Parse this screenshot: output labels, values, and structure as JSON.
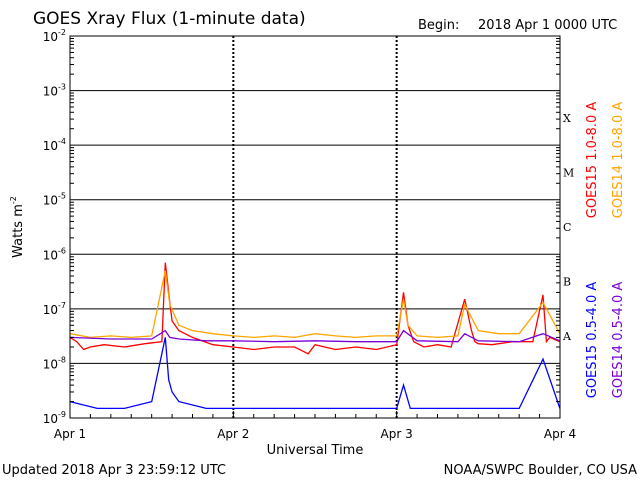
{
  "header": {
    "title": "GOES Xray Flux (1-minute data)",
    "begin_label": "Begin:",
    "begin_value": "2018 Apr 1 0000 UTC"
  },
  "footer": {
    "updated": "Updated 2018 Apr  3 23:59:12 UTC",
    "credit": "NOAA/SWPC Boulder, CO USA"
  },
  "colors": {
    "goes15_long": "#ff0000",
    "goes14_long": "#ffa500",
    "goes15_short": "#0000ff",
    "goes14_short": "#7b00d6",
    "grid": "#000000",
    "background": "#ffffff"
  },
  "chart_data": {
    "type": "line",
    "yscale": "log",
    "xlabel": "Universal Time",
    "ylabel": "Watts m",
    "ylabel_superscript": "-2",
    "ylim": [
      1e-09,
      0.01
    ],
    "y_tick_exponents": [
      -9,
      -8,
      -7,
      -6,
      -5,
      -4,
      -3,
      -2
    ],
    "xlim": [
      "2018-04-01T00:00",
      "2018-04-04T00:00"
    ],
    "x_ticks": [
      "Apr 1",
      "Apr 2",
      "Apr 3",
      "Apr 4"
    ],
    "flare_classes": [
      {
        "label": "A",
        "lower": 1e-08
      },
      {
        "label": "B",
        "lower": 1e-07
      },
      {
        "label": "C",
        "lower": 1e-06
      },
      {
        "label": "M",
        "lower": 1e-05
      },
      {
        "label": "X",
        "lower": 0.0001
      }
    ],
    "series": [
      {
        "name": "GOES15 1.0-8.0 A",
        "color": "#ff0000",
        "x": [
          "2018-04-01T00:00",
          "2018-04-01T01:00",
          "2018-04-01T02:00",
          "2018-04-01T03:00",
          "2018-04-01T05:00",
          "2018-04-01T08:00",
          "2018-04-01T11:00",
          "2018-04-01T13:30",
          "2018-04-01T14:00",
          "2018-04-01T14:40",
          "2018-04-01T15:00",
          "2018-04-01T16:00",
          "2018-04-01T18:00",
          "2018-04-01T21:00",
          "2018-04-02T00:00",
          "2018-04-02T03:00",
          "2018-04-02T06:00",
          "2018-04-02T09:00",
          "2018-04-02T11:00",
          "2018-04-02T12:00",
          "2018-04-02T15:00",
          "2018-04-02T18:00",
          "2018-04-02T21:00",
          "2018-04-03T00:00",
          "2018-04-03T01:00",
          "2018-04-03T01:40",
          "2018-04-03T02:30",
          "2018-04-03T04:00",
          "2018-04-03T06:00",
          "2018-04-03T08:00",
          "2018-04-03T10:00",
          "2018-04-03T11:00",
          "2018-04-03T11:30",
          "2018-04-03T12:00",
          "2018-04-03T14:00",
          "2018-04-03T17:00",
          "2018-04-03T20:00",
          "2018-04-03T21:30",
          "2018-04-03T22:00",
          "2018-04-03T22:30",
          "2018-04-03T23:59"
        ],
        "y": [
          3e-08,
          2.5e-08,
          1.8e-08,
          2e-08,
          2.2e-08,
          2e-08,
          2.3e-08,
          2.5e-08,
          7e-07,
          1.3e-07,
          6e-08,
          4e-08,
          3e-08,
          2.2e-08,
          2e-08,
          1.8e-08,
          2e-08,
          2e-08,
          1.5e-08,
          2.2e-08,
          1.8e-08,
          2e-08,
          1.8e-08,
          2.2e-08,
          2e-07,
          5e-08,
          2.5e-08,
          2e-08,
          2.2e-08,
          2e-08,
          1.5e-07,
          4e-08,
          2.5e-08,
          2.3e-08,
          2.2e-08,
          2.5e-08,
          2.5e-08,
          1.8e-07,
          2.5e-08,
          3e-08,
          2.5e-08
        ]
      },
      {
        "name": "GOES14 1.0-8.0 A",
        "color": "#ffa500",
        "x": [
          "2018-04-01T00:00",
          "2018-04-01T03:00",
          "2018-04-01T06:00",
          "2018-04-01T09:00",
          "2018-04-01T12:00",
          "2018-04-01T14:00",
          "2018-04-01T14:40",
          "2018-04-01T16:00",
          "2018-04-01T18:00",
          "2018-04-01T21:00",
          "2018-04-02T00:00",
          "2018-04-02T03:00",
          "2018-04-02T06:00",
          "2018-04-02T09:00",
          "2018-04-02T12:00",
          "2018-04-02T15:00",
          "2018-04-02T18:00",
          "2018-04-02T21:00",
          "2018-04-03T00:00",
          "2018-04-03T01:00",
          "2018-04-03T01:40",
          "2018-04-03T03:00",
          "2018-04-03T06:00",
          "2018-04-03T09:00",
          "2018-04-03T10:00",
          "2018-04-03T12:00",
          "2018-04-03T15:00",
          "2018-04-03T18:00",
          "2018-04-03T21:30",
          "2018-04-03T23:59"
        ],
        "y": [
          3.5e-08,
          3e-08,
          3.2e-08,
          3e-08,
          3.2e-08,
          5e-07,
          1.2e-07,
          5e-08,
          4e-08,
          3.5e-08,
          3.2e-08,
          3e-08,
          3.2e-08,
          3e-08,
          3.5e-08,
          3.2e-08,
          3e-08,
          3.2e-08,
          3.2e-08,
          1.5e-07,
          5e-08,
          3.2e-08,
          3e-08,
          3.2e-08,
          1.2e-07,
          4e-08,
          3.5e-08,
          3.5e-08,
          1.3e-07,
          3.5e-08
        ]
      },
      {
        "name": "GOES15 0.5-4.0 A",
        "color": "#0000ff",
        "x": [
          "2018-04-01T00:00",
          "2018-04-01T04:00",
          "2018-04-01T08:00",
          "2018-04-01T12:00",
          "2018-04-01T14:00",
          "2018-04-01T14:30",
          "2018-04-01T15:00",
          "2018-04-01T16:00",
          "2018-04-01T20:00",
          "2018-04-02T00:00",
          "2018-04-02T06:00",
          "2018-04-02T12:00",
          "2018-04-02T18:00",
          "2018-04-03T00:00",
          "2018-04-03T01:00",
          "2018-04-03T02:00",
          "2018-04-03T06:00",
          "2018-04-03T12:00",
          "2018-04-03T18:00",
          "2018-04-03T21:30",
          "2018-04-03T23:59"
        ],
        "y": [
          2e-09,
          1.5e-09,
          1.5e-09,
          2e-09,
          3e-08,
          5e-09,
          3e-09,
          2e-09,
          1.5e-09,
          1.5e-09,
          1.5e-09,
          1.5e-09,
          1.5e-09,
          1.5e-09,
          4e-09,
          1.5e-09,
          1.5e-09,
          1.5e-09,
          1.5e-09,
          1.2e-08,
          1.5e-09
        ]
      },
      {
        "name": "GOES14 0.5-4.0 A",
        "color": "#7b00d6",
        "x": [
          "2018-04-01T00:00",
          "2018-04-01T06:00",
          "2018-04-01T12:00",
          "2018-04-01T14:00",
          "2018-04-01T14:40",
          "2018-04-01T16:00",
          "2018-04-01T20:00",
          "2018-04-02T00:00",
          "2018-04-02T06:00",
          "2018-04-02T12:00",
          "2018-04-02T18:00",
          "2018-04-03T00:00",
          "2018-04-03T01:00",
          "2018-04-03T03:00",
          "2018-04-03T09:00",
          "2018-04-03T10:00",
          "2018-04-03T12:00",
          "2018-04-03T18:00",
          "2018-04-03T21:30",
          "2018-04-03T23:59"
        ],
        "y": [
          3e-08,
          2.8e-08,
          2.8e-08,
          4e-08,
          3e-08,
          2.8e-08,
          2.6e-08,
          2.6e-08,
          2.5e-08,
          2.6e-08,
          2.5e-08,
          2.5e-08,
          4e-08,
          2.6e-08,
          2.5e-08,
          3.5e-08,
          2.6e-08,
          2.5e-08,
          3.5e-08,
          2.6e-08
        ]
      }
    ]
  }
}
